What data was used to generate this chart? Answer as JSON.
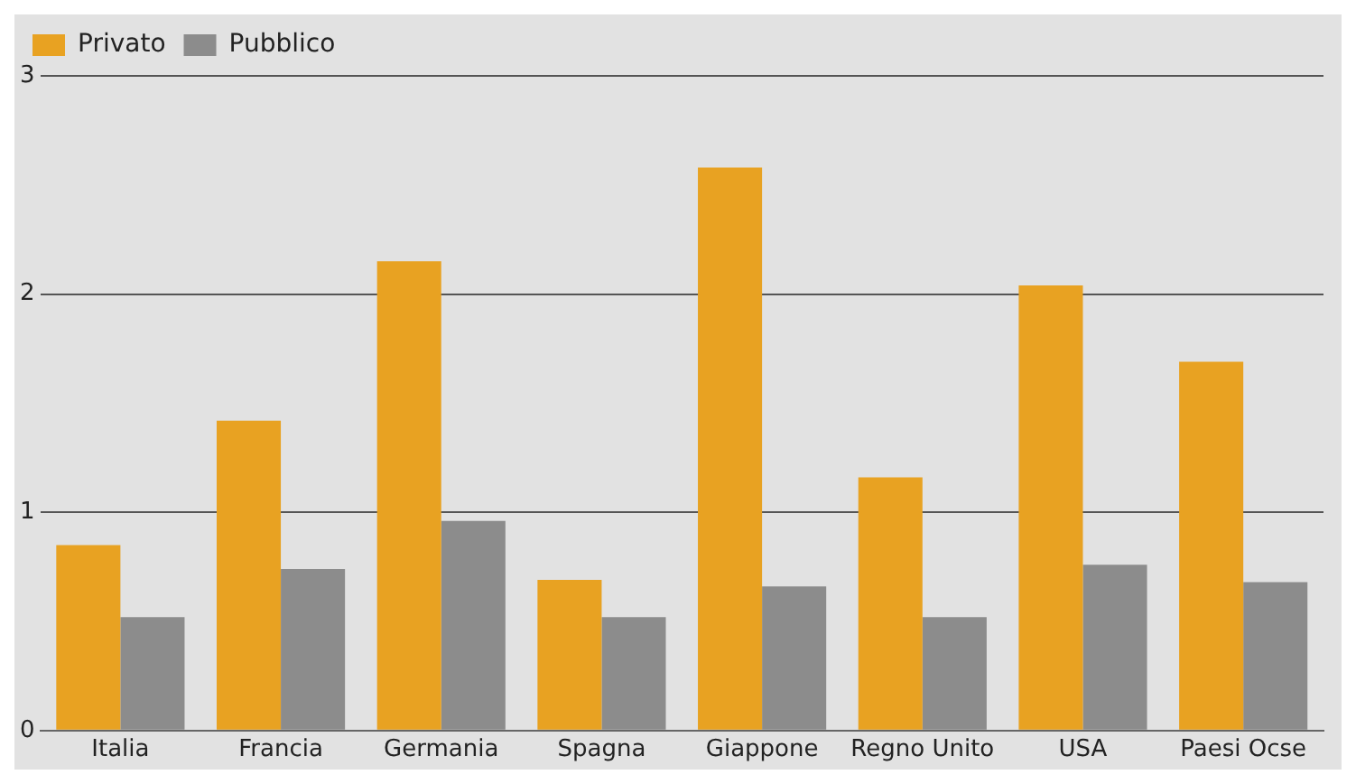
{
  "chart_data": {
    "type": "bar",
    "categories": [
      "Italia",
      "Francia",
      "Germania",
      "Spagna",
      "Giappone",
      "Regno Unito",
      "USA",
      "Paesi Ocse"
    ],
    "series": [
      {
        "name": "Privato",
        "color": "#e8a222",
        "values": [
          0.85,
          1.42,
          2.15,
          0.69,
          2.58,
          1.16,
          2.04,
          1.69
        ]
      },
      {
        "name": "Pubblico",
        "color": "#8c8c8c",
        "values": [
          0.52,
          0.74,
          0.96,
          0.52,
          0.66,
          0.52,
          0.76,
          0.68
        ]
      }
    ],
    "ylim": [
      0,
      3
    ],
    "yticks": [
      0,
      1,
      2,
      3
    ],
    "grid": "y",
    "legend": "top left"
  }
}
